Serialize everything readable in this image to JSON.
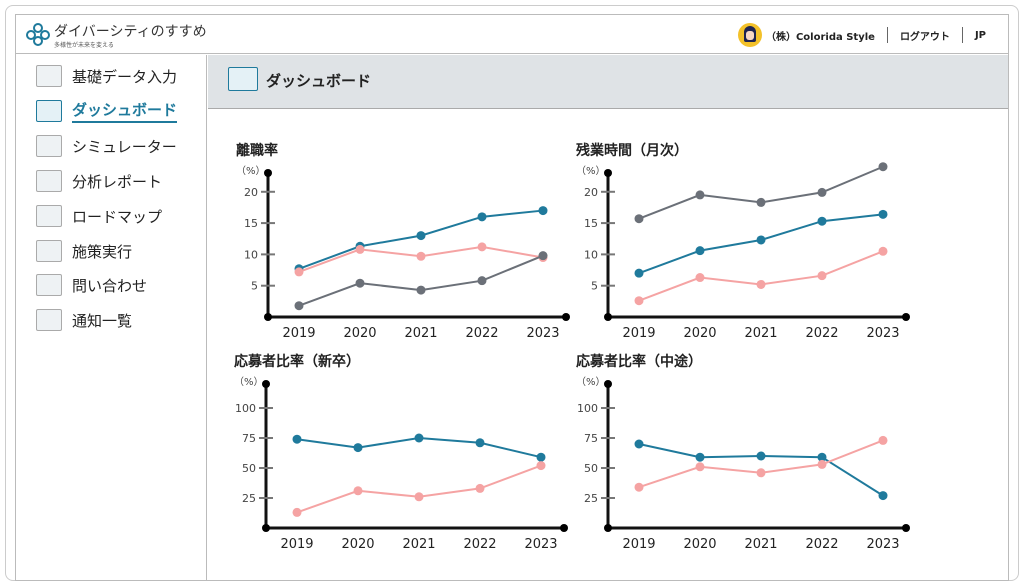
{
  "header": {
    "brand": "ダイバーシティのすすめ",
    "tagline": "多様性が未来を変える",
    "company": "（株）Colorida Style",
    "logout": "ログアウト",
    "lang": "JP"
  },
  "sidebar": {
    "items": [
      {
        "label": "基礎データ入力",
        "icon": "data-input-icon"
      },
      {
        "label": "ダッシュボード",
        "icon": "dashboard-icon",
        "active": true
      },
      {
        "label": "シミュレーター",
        "icon": "simulator-icon"
      },
      {
        "label": "分析レポート",
        "icon": "report-icon"
      },
      {
        "label": "ロードマップ",
        "icon": "roadmap-icon"
      },
      {
        "label": "施策実行",
        "icon": "execution-icon"
      },
      {
        "label": "問い合わせ",
        "icon": "inquiry-icon"
      },
      {
        "label": "通知一覧",
        "icon": "megaphone-icon"
      }
    ]
  },
  "main": {
    "title": "ダッシュボード"
  },
  "colors": {
    "blue": "#1f7a9c",
    "pink": "#f5a3a3",
    "gray": "#6b7078"
  },
  "chart_data": [
    {
      "type": "line",
      "title": "離職率",
      "ylabel": "（%）",
      "ylim": [
        0,
        23
      ],
      "yticks": [
        5,
        10,
        15,
        20
      ],
      "categories": [
        "2019",
        "2020",
        "2021",
        "2022",
        "2023"
      ],
      "series": [
        {
          "color": "blue",
          "values": [
            7.7,
            11.3,
            13,
            16,
            17
          ]
        },
        {
          "color": "pink",
          "values": [
            7.2,
            10.8,
            9.7,
            11.2,
            9.5
          ]
        },
        {
          "color": "gray",
          "values": [
            1.8,
            5.4,
            4.3,
            5.8,
            9.8
          ]
        }
      ]
    },
    {
      "type": "line",
      "title": "残業時間（月次）",
      "ylabel": "（%）",
      "ylim": [
        0,
        23
      ],
      "yticks": [
        5,
        10,
        15,
        20
      ],
      "categories": [
        "2019",
        "2020",
        "2021",
        "2022",
        "2023"
      ],
      "series": [
        {
          "color": "gray",
          "values": [
            15.7,
            19.5,
            18.3,
            19.9,
            24
          ]
        },
        {
          "color": "blue",
          "values": [
            7,
            10.6,
            12.3,
            15.3,
            16.4
          ]
        },
        {
          "color": "pink",
          "values": [
            2.6,
            6.3,
            5.2,
            6.6,
            10.5
          ]
        }
      ]
    },
    {
      "type": "line",
      "title": "応募者比率（新卒）",
      "ylabel": "（%）",
      "ylim": [
        0,
        120
      ],
      "yticks": [
        25,
        50,
        75,
        100
      ],
      "categories": [
        "2019",
        "2020",
        "2021",
        "2022",
        "2023"
      ],
      "series": [
        {
          "color": "blue",
          "values": [
            74,
            67,
            75,
            71,
            59
          ]
        },
        {
          "color": "pink",
          "values": [
            13,
            31,
            26,
            33,
            52
          ]
        }
      ]
    },
    {
      "type": "line",
      "title": "応募者比率（中途）",
      "ylabel": "（%）",
      "ylim": [
        0,
        120
      ],
      "yticks": [
        25,
        50,
        75,
        100
      ],
      "categories": [
        "2019",
        "2020",
        "2021",
        "2022",
        "2023"
      ],
      "series": [
        {
          "color": "blue",
          "values": [
            70,
            59,
            60,
            59,
            27
          ]
        },
        {
          "color": "pink",
          "values": [
            34,
            51,
            46,
            53,
            73
          ]
        }
      ]
    }
  ]
}
